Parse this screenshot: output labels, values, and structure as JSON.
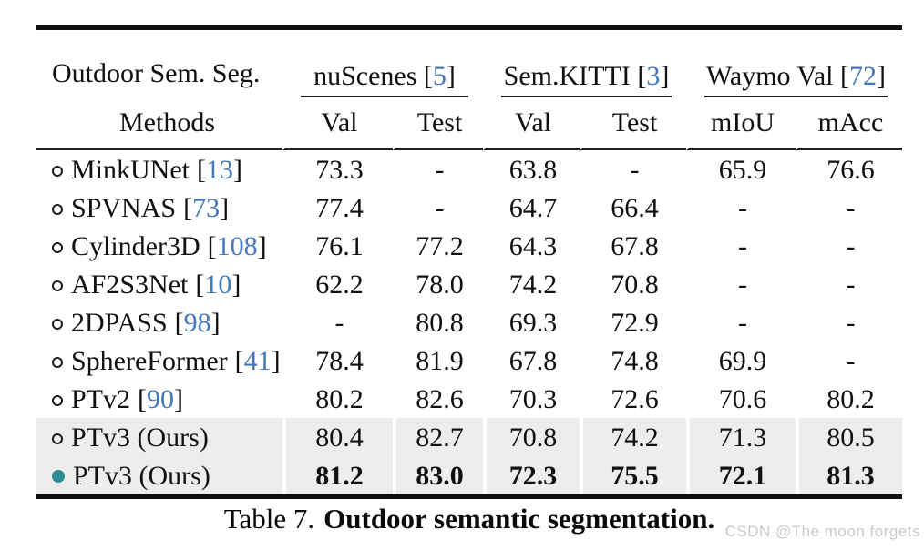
{
  "punct": {
    "open_bracket": "[",
    "close_bracket": "]"
  },
  "colors": {
    "cite_blue": "#4477bb",
    "marker_teal": "#2e8b96",
    "highlight_gray": "#eeedec",
    "rule_black": "#111111",
    "watermark_gray": "#c9c9c9"
  },
  "table": {
    "corner_title": "Outdoor Sem. Seg.",
    "corner_subtitle": "Methods",
    "groups": [
      {
        "name": "nuScenes",
        "cite": "5"
      },
      {
        "name": "Sem.KITTI",
        "cite": "3"
      },
      {
        "name": "Waymo Val",
        "cite": "72"
      }
    ],
    "subheaders": [
      "Val",
      "Test",
      "Val",
      "Test",
      "mIoU",
      "mAcc"
    ],
    "rows": [
      {
        "marker": "open",
        "name": "MinkUNet",
        "cite": "13",
        "values": [
          "73.3",
          "-",
          "63.8",
          "-",
          "65.9",
          "76.6"
        ],
        "highlight": false,
        "bold": false
      },
      {
        "marker": "open",
        "name": "SPVNAS",
        "cite": "73",
        "values": [
          "77.4",
          "-",
          "64.7",
          "66.4",
          "-",
          "-"
        ],
        "highlight": false,
        "bold": false
      },
      {
        "marker": "open",
        "name": "Cylinder3D",
        "cite": "108",
        "values": [
          "76.1",
          "77.2",
          "64.3",
          "67.8",
          "-",
          "-"
        ],
        "highlight": false,
        "bold": false
      },
      {
        "marker": "open",
        "name": "AF2S3Net",
        "cite": "10",
        "values": [
          "62.2",
          "78.0",
          "74.2",
          "70.8",
          "-",
          "-"
        ],
        "highlight": false,
        "bold": false
      },
      {
        "marker": "open",
        "name": "2DPASS",
        "cite": "98",
        "values": [
          "-",
          "80.8",
          "69.3",
          "72.9",
          "-",
          "-"
        ],
        "highlight": false,
        "bold": false
      },
      {
        "marker": "open",
        "name": "SphereFormer",
        "cite": "41",
        "values": [
          "78.4",
          "81.9",
          "67.8",
          "74.8",
          "69.9",
          "-"
        ],
        "highlight": false,
        "bold": false
      },
      {
        "marker": "open",
        "name": "PTv2",
        "cite": "90",
        "values": [
          "80.2",
          "82.6",
          "70.3",
          "72.6",
          "70.6",
          "80.2"
        ],
        "highlight": false,
        "bold": false
      },
      {
        "marker": "open",
        "name": "PTv3 (Ours)",
        "cite": null,
        "values": [
          "80.4",
          "82.7",
          "70.8",
          "74.2",
          "71.3",
          "80.5"
        ],
        "highlight": true,
        "bold": false
      },
      {
        "marker": "filled",
        "name": "PTv3 (Ours)",
        "cite": null,
        "values": [
          "81.2",
          "83.0",
          "72.3",
          "75.5",
          "72.1",
          "81.3"
        ],
        "highlight": true,
        "bold": true
      }
    ]
  },
  "caption": {
    "label": "Table 7.",
    "title": "Outdoor semantic segmentation."
  },
  "watermark": "CSDN @The moon forgets"
}
